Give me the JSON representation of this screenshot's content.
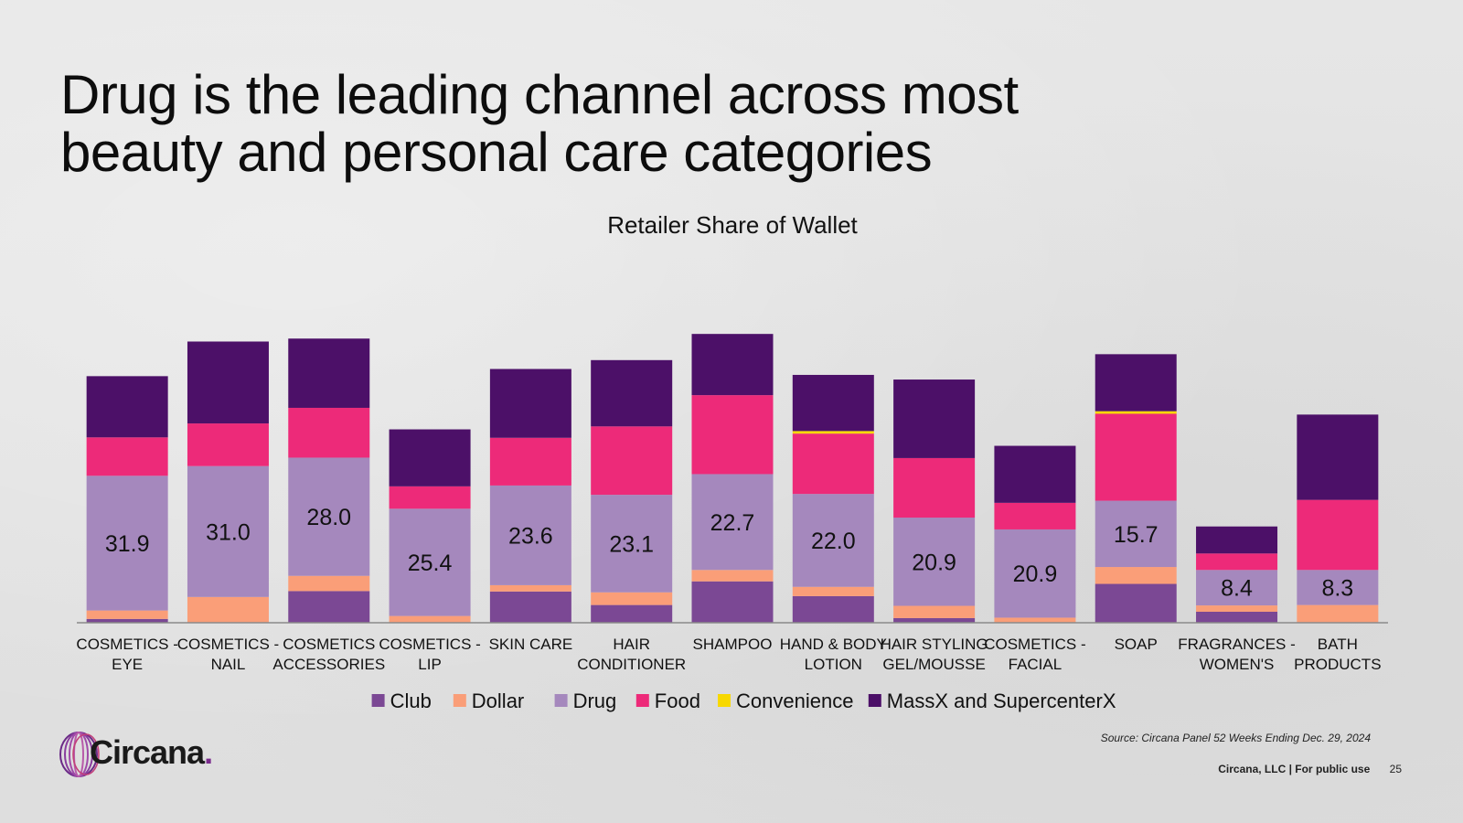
{
  "title": {
    "line1": "Drug is the leading channel across most",
    "line2": "beauty and personal care categories"
  },
  "chart_data": {
    "type": "bar",
    "stacked": true,
    "title": "Retailer Share of Wallet",
    "categories": [
      [
        "COSMETICS -",
        "EYE"
      ],
      [
        "COSMETICS -",
        "NAIL"
      ],
      [
        "COSMETICS",
        "ACCESSORIES"
      ],
      [
        "COSMETICS -",
        "LIP"
      ],
      [
        "SKIN CARE"
      ],
      [
        "HAIR",
        "CONDITIONER"
      ],
      [
        "SHAMPOO"
      ],
      [
        "HAND & BODY",
        "LOTION"
      ],
      [
        "HAIR STYLING",
        "GEL/MOUSSE"
      ],
      [
        "COSMETICS -",
        "FACIAL"
      ],
      [
        "SOAP"
      ],
      [
        "FRAGRANCES -",
        "WOMEN'S"
      ],
      [
        "BATH",
        "PRODUCTS"
      ]
    ],
    "series": [
      {
        "name": "Club",
        "color": "#7b4894",
        "values": [
          0.9,
          0,
          7.5,
          0,
          7.4,
          4.2,
          9.8,
          6.3,
          1.1,
          0,
          9.2,
          2.6,
          0
        ]
      },
      {
        "name": "Dollar",
        "color": "#fa9e78",
        "values": [
          2.0,
          6.1,
          3.6,
          1.6,
          1.5,
          3.0,
          2.7,
          2.2,
          2.9,
          1.2,
          4.0,
          1.5,
          4.2
        ]
      },
      {
        "name": "Drug",
        "color": "#a588bd",
        "show_labels": true,
        "values": [
          31.9,
          31.0,
          28.0,
          25.4,
          23.6,
          23.1,
          22.7,
          22.0,
          20.9,
          20.9,
          15.7,
          8.4,
          8.3
        ]
      },
      {
        "name": "Food",
        "color": "#ed2a79",
        "values": [
          9.1,
          10.1,
          11.8,
          5.3,
          11.3,
          16.2,
          18.7,
          14.3,
          14.1,
          6.3,
          20.6,
          3.9,
          16.6
        ]
      },
      {
        "name": "Convenience",
        "color": "#f7d800",
        "values": [
          0,
          0,
          0,
          0,
          0,
          0,
          0,
          0.6,
          0,
          0,
          0.6,
          0,
          0
        ]
      },
      {
        "name": "MassX and SupercenterX",
        "color": "#4c1068",
        "values": [
          14.5,
          19.4,
          16.4,
          13.5,
          16.3,
          15.7,
          14.5,
          13.3,
          18.6,
          13.5,
          13.5,
          6.4,
          20.2
        ]
      }
    ],
    "ylim": [
      0,
      81
    ],
    "legend_position": "bottom"
  },
  "source_note": "Source: Circana Panel 52 Weeks Ending Dec. 29, 2024",
  "footer": {
    "company": "Circana, LLC |  For public use",
    "page": "25"
  },
  "logo": {
    "name": "Circana",
    "dot": "."
  }
}
